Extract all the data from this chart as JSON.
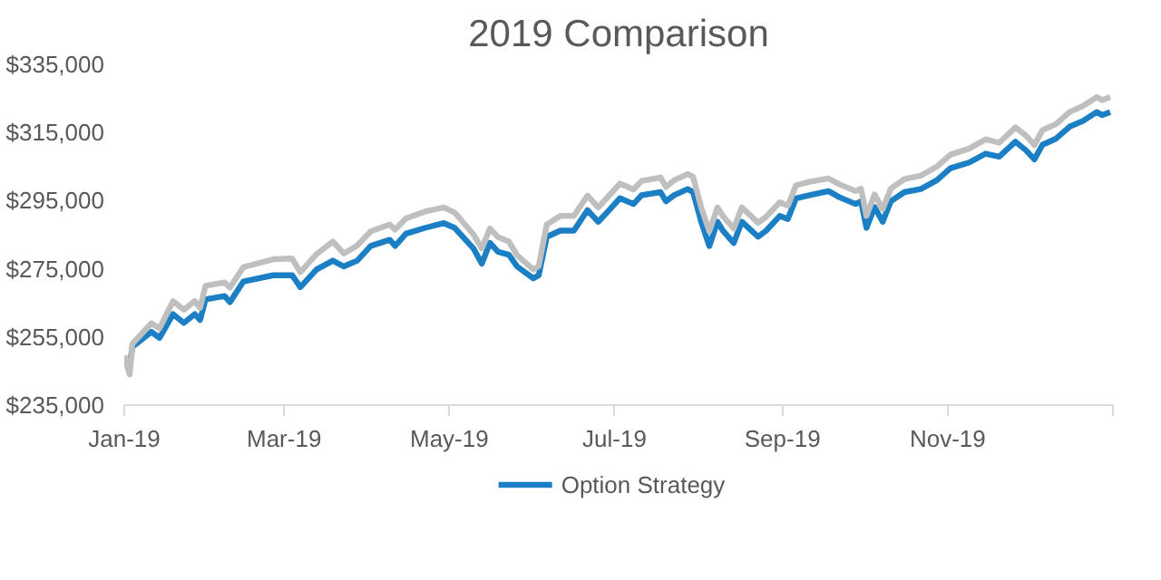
{
  "chart_data": {
    "type": "line",
    "title": "2019 Comparison",
    "x": [
      "2019-01-01",
      "2019-01-03",
      "2019-01-04",
      "2019-01-11",
      "2019-01-14",
      "2019-01-19",
      "2019-01-23",
      "2019-01-27",
      "2019-01-29",
      "2019-01-31",
      "2019-02-07",
      "2019-02-09",
      "2019-02-14",
      "2019-02-25",
      "2019-03-04",
      "2019-03-07",
      "2019-03-13",
      "2019-03-19",
      "2019-03-23",
      "2019-03-28",
      "2019-04-02",
      "2019-04-09",
      "2019-04-11",
      "2019-04-15",
      "2019-04-22",
      "2019-04-29",
      "2019-05-03",
      "2019-05-07",
      "2019-05-10",
      "2019-05-13",
      "2019-05-16",
      "2019-05-19",
      "2019-05-23",
      "2019-05-26",
      "2019-06-01",
      "2019-06-03",
      "2019-06-06",
      "2019-06-11",
      "2019-06-16",
      "2019-06-21",
      "2019-06-25",
      "2019-06-29",
      "2019-07-03",
      "2019-07-08",
      "2019-07-11",
      "2019-07-18",
      "2019-07-20",
      "2019-07-23",
      "2019-07-28",
      "2019-07-30",
      "2019-08-02",
      "2019-08-05",
      "2019-08-08",
      "2019-08-10",
      "2019-08-14",
      "2019-08-17",
      "2019-08-23",
      "2019-08-26",
      "2019-08-31",
      "2019-09-03",
      "2019-09-06",
      "2019-09-11",
      "2019-09-18",
      "2019-09-22",
      "2019-09-28",
      "2019-09-30",
      "2019-10-02",
      "2019-10-05",
      "2019-10-08",
      "2019-10-11",
      "2019-10-16",
      "2019-10-22",
      "2019-10-28",
      "2019-11-02",
      "2019-11-09",
      "2019-11-15",
      "2019-11-20",
      "2019-11-26",
      "2019-11-30",
      "2019-12-03",
      "2019-12-06",
      "2019-12-11",
      "2019-12-16",
      "2019-12-21",
      "2019-12-26",
      "2019-12-28",
      "2019-12-31"
    ],
    "series": [
      {
        "name": "Option Strategy",
        "color": "#1a7fc4",
        "values": [
          248600,
          246500,
          252100,
          256500,
          254700,
          261700,
          259100,
          261700,
          260000,
          266000,
          267000,
          265200,
          271300,
          273100,
          273100,
          269600,
          274800,
          277400,
          275700,
          277400,
          281700,
          283500,
          281700,
          285300,
          287000,
          288400,
          287000,
          283500,
          280900,
          276500,
          282600,
          280000,
          279100,
          275700,
          272200,
          273100,
          284400,
          286200,
          286200,
          292200,
          288800,
          292200,
          295700,
          294000,
          296600,
          297500,
          294800,
          296600,
          298400,
          297500,
          288800,
          281700,
          288800,
          286200,
          282600,
          288800,
          284400,
          286200,
          290500,
          289600,
          295700,
          296600,
          297800,
          296000,
          294000,
          294800,
          287000,
          293100,
          288800,
          294800,
          297500,
          298400,
          301000,
          304500,
          306200,
          308800,
          307900,
          312300,
          309700,
          307100,
          311400,
          313200,
          316700,
          318400,
          321000,
          320100,
          321000
        ]
      },
      {
        "color": "#bfbfbf",
        "values": [
          249500,
          244000,
          253000,
          259000,
          257500,
          265500,
          263000,
          265500,
          263500,
          270000,
          271000,
          269500,
          275500,
          277800,
          278000,
          274000,
          279300,
          283000,
          279500,
          281800,
          286000,
          288000,
          286500,
          289800,
          291800,
          293000,
          291500,
          287800,
          285000,
          281000,
          286800,
          284300,
          283000,
          279000,
          274800,
          275800,
          288000,
          290500,
          290500,
          296500,
          293000,
          296500,
          300000,
          298300,
          300800,
          301800,
          299000,
          301000,
          302800,
          302000,
          293000,
          286000,
          293000,
          290500,
          286800,
          293000,
          288500,
          290300,
          294500,
          293500,
          299500,
          300500,
          301500,
          299800,
          297800,
          298500,
          290500,
          296800,
          292500,
          298500,
          301300,
          302300,
          305000,
          308500,
          310300,
          313000,
          312000,
          316500,
          314000,
          311300,
          315700,
          317500,
          321000,
          322800,
          325400,
          324500,
          325400
        ]
      }
    ],
    "xlim": [
      "2019-01-01",
      "2020-01-01"
    ],
    "xticks": [
      {
        "value": "2019-01-01",
        "label": "Jan-19"
      },
      {
        "value": "2019-03-01",
        "label": "Mar-19"
      },
      {
        "value": "2019-05-01",
        "label": "May-19"
      },
      {
        "value": "2019-07-01",
        "label": "Jul-19"
      },
      {
        "value": "2019-09-01",
        "label": "Sep-19"
      },
      {
        "value": "2019-11-01",
        "label": "Nov-19"
      },
      {
        "value": "2020-01-01",
        "label": null
      }
    ],
    "ylim": [
      235000,
      335000
    ],
    "yticks": [
      {
        "value": 235000,
        "label": "$235,000"
      },
      {
        "value": 255000,
        "label": "$255,000"
      },
      {
        "value": 275000,
        "label": "$275,000"
      },
      {
        "value": 295000,
        "label": "$295,000"
      },
      {
        "value": 315000,
        "label": "$315,000"
      },
      {
        "value": 335000,
        "label": "$335,000"
      }
    ],
    "grid": false,
    "legend": "bottom"
  }
}
